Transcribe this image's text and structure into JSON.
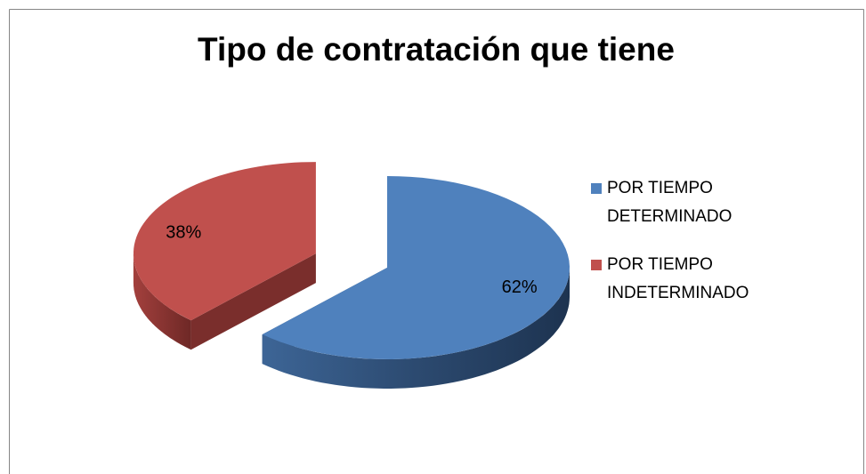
{
  "chart_data": {
    "type": "pie",
    "title": "Tipo de contratación que tiene",
    "categories": [
      "POR TIEMPO DETERMINADO",
      "POR TIEMPO INDETERMINADO"
    ],
    "values": [
      62,
      38
    ],
    "value_labels": [
      "62%",
      "38%"
    ],
    "colors": [
      "#4f81bd",
      "#c0504d"
    ],
    "legend": "right"
  }
}
